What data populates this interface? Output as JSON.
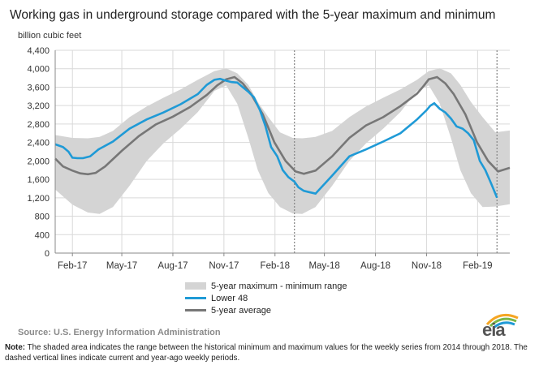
{
  "title": "Working gas in underground  storage compared with the 5-year maximum  and minimum",
  "source": "Source:  U.S. Energy Information Administration",
  "note_label": "Note:",
  "note_text": "The shaded area indicates the range between the historical minimum and maximum values for the weekly series from 2014 through 2018. The dashed vertical lines indicate current and year-ago weekly periods.",
  "logo_text": "eia",
  "colors": {
    "band": "#d4d4d4",
    "lower48": "#1f9ad6",
    "average": "#777777",
    "grid": "#d9d9d9"
  },
  "chart_data": {
    "type": "line",
    "ylabel": "billion cubic feet",
    "ylim": [
      0,
      4400
    ],
    "yticks": [
      0,
      400,
      800,
      1200,
      1600,
      2000,
      2400,
      2800,
      3200,
      3600,
      4000,
      4400
    ],
    "ytick_labels": [
      "0",
      "400",
      "800",
      "1,200",
      "1,600",
      "2,000",
      "2,400",
      "2,800",
      "3,200",
      "3,600",
      "4,000",
      "4,400"
    ],
    "xlim": [
      "2017-01-01",
      "2019-03-31"
    ],
    "xtick_dates": [
      "2017-02-01",
      "2017-05-01",
      "2017-08-01",
      "2017-11-01",
      "2018-02-01",
      "2018-05-01",
      "2018-08-01",
      "2018-11-01",
      "2019-02-01"
    ],
    "xtick_labels": [
      "Feb-17",
      "May-17",
      "Aug-17",
      "Nov-17",
      "Feb-18",
      "May-18",
      "Aug-18",
      "Nov-18",
      "Feb-19"
    ],
    "vlines_dashed": [
      "2018-03-08",
      "2019-03-08"
    ],
    "legend": [
      "5-year maximum - minimum range",
      "Lower 48",
      "5-year average"
    ],
    "band": {
      "name": "5-year maximum - minimum range",
      "x": [
        "2017-01-01",
        "2017-02-01",
        "2017-03-01",
        "2017-03-22",
        "2017-04-15",
        "2017-05-15",
        "2017-06-15",
        "2017-07-15",
        "2017-08-15",
        "2017-09-15",
        "2017-10-15",
        "2017-11-05",
        "2017-11-25",
        "2017-12-15",
        "2018-01-01",
        "2018-01-20",
        "2018-02-10",
        "2018-03-05",
        "2018-03-22",
        "2018-04-15",
        "2018-05-15",
        "2018-06-15",
        "2018-07-15",
        "2018-08-15",
        "2018-09-15",
        "2018-10-15",
        "2018-11-05",
        "2018-11-25",
        "2018-12-15",
        "2019-01-01",
        "2019-01-20",
        "2019-02-10",
        "2019-03-05",
        "2019-03-31"
      ],
      "max": [
        2560,
        2500,
        2490,
        2520,
        2650,
        2950,
        3180,
        3370,
        3550,
        3760,
        3950,
        4010,
        3900,
        3650,
        3280,
        2950,
        2620,
        2500,
        2490,
        2520,
        2650,
        2950,
        3180,
        3370,
        3550,
        3760,
        3950,
        4010,
        3900,
        3650,
        3280,
        2950,
        2620,
        2660
      ],
      "min": [
        1380,
        1050,
        880,
        850,
        1000,
        1460,
        2000,
        2380,
        2700,
        3060,
        3520,
        3640,
        3240,
        2500,
        1800,
        1300,
        1000,
        860,
        850,
        1000,
        1460,
        2000,
        2380,
        2700,
        3060,
        3520,
        3640,
        3240,
        2500,
        1800,
        1300,
        1000,
        1010,
        1060
      ]
    },
    "series": [
      {
        "name": "Lower 48",
        "x": [
          "2017-01-01",
          "2017-01-15",
          "2017-01-25",
          "2017-02-01",
          "2017-02-10",
          "2017-02-20",
          "2017-03-05",
          "2017-03-20",
          "2017-04-15",
          "2017-05-15",
          "2017-06-15",
          "2017-07-15",
          "2017-08-15",
          "2017-09-15",
          "2017-10-01",
          "2017-10-15",
          "2017-10-25",
          "2017-11-05",
          "2017-11-15",
          "2017-11-25",
          "2017-12-05",
          "2017-12-15",
          "2017-12-25",
          "2018-01-05",
          "2018-01-15",
          "2018-01-25",
          "2018-02-05",
          "2018-02-15",
          "2018-02-25",
          "2018-03-08",
          "2018-03-15",
          "2018-03-25",
          "2018-04-15",
          "2018-05-15",
          "2018-06-15",
          "2018-07-15",
          "2018-08-15",
          "2018-09-15",
          "2018-10-15",
          "2018-11-01",
          "2018-11-08",
          "2018-11-15",
          "2018-11-25",
          "2018-12-05",
          "2018-12-15",
          "2018-12-25",
          "2019-01-05",
          "2019-01-15",
          "2019-01-25",
          "2019-02-05",
          "2019-02-15",
          "2019-02-25",
          "2019-03-08"
        ],
        "values": [
          2360,
          2300,
          2200,
          2070,
          2060,
          2060,
          2100,
          2250,
          2420,
          2700,
          2900,
          3050,
          3230,
          3450,
          3650,
          3760,
          3780,
          3740,
          3710,
          3700,
          3600,
          3500,
          3380,
          3100,
          2750,
          2300,
          2100,
          1800,
          1650,
          1550,
          1430,
          1350,
          1290,
          1680,
          2100,
          2250,
          2420,
          2600,
          2900,
          3100,
          3200,
          3250,
          3130,
          3050,
          2920,
          2750,
          2700,
          2600,
          2450,
          2000,
          1800,
          1520,
          1200
        ]
      },
      {
        "name": "5-year average",
        "x": [
          "2017-01-01",
          "2017-01-15",
          "2017-02-01",
          "2017-02-15",
          "2017-03-01",
          "2017-03-15",
          "2017-04-01",
          "2017-05-01",
          "2017-06-01",
          "2017-07-01",
          "2017-08-01",
          "2017-09-01",
          "2017-10-01",
          "2017-10-20",
          "2017-11-05",
          "2017-11-20",
          "2017-12-05",
          "2017-12-20",
          "2018-01-10",
          "2018-01-31",
          "2018-02-20",
          "2018-03-10",
          "2018-03-25",
          "2018-04-15",
          "2018-05-15",
          "2018-06-15",
          "2018-07-15",
          "2018-08-15",
          "2018-09-15",
          "2018-10-15",
          "2018-10-25",
          "2018-11-05",
          "2018-11-20",
          "2018-12-05",
          "2018-12-20",
          "2019-01-10",
          "2019-01-31",
          "2019-02-20",
          "2019-03-10",
          "2019-03-31"
        ],
        "values": [
          2050,
          1880,
          1790,
          1730,
          1710,
          1740,
          1880,
          2220,
          2540,
          2790,
          2960,
          3170,
          3430,
          3640,
          3770,
          3820,
          3680,
          3450,
          3010,
          2400,
          2000,
          1770,
          1720,
          1790,
          2100,
          2500,
          2770,
          2950,
          3190,
          3460,
          3600,
          3770,
          3820,
          3680,
          3450,
          3010,
          2400,
          2000,
          1770,
          1850
        ]
      }
    ]
  }
}
